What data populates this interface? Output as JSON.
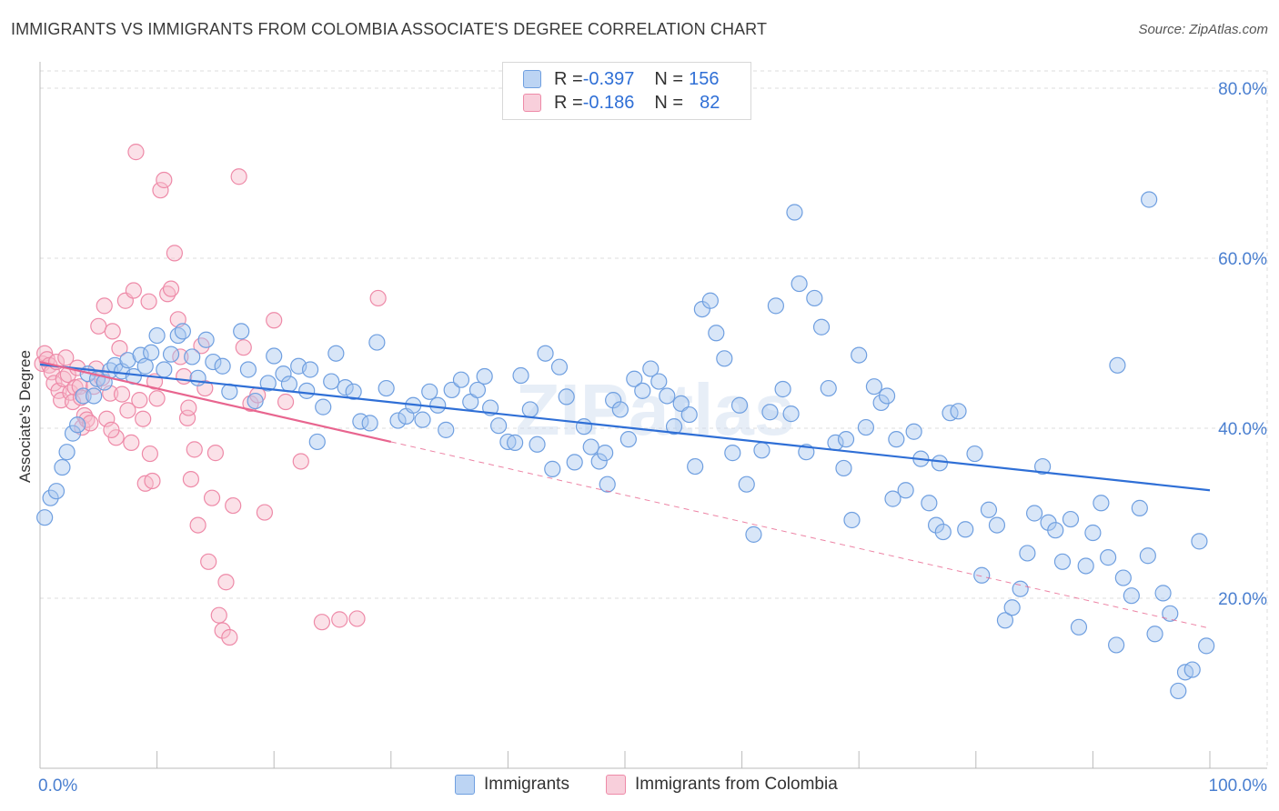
{
  "header": {
    "title": "IMMIGRANTS VS IMMIGRANTS FROM COLOMBIA ASSOCIATE'S DEGREE CORRELATION CHART",
    "source": "Source: ZipAtlas.com"
  },
  "watermark": "ZIPatlas",
  "legend_top": [
    {
      "r_label": "R = ",
      "r_value": "-0.397",
      "n_label": "N = ",
      "n_value": "156"
    },
    {
      "r_label": "R = ",
      "r_value": "-0.186",
      "n_label": "N = ",
      "n_value": "82"
    }
  ],
  "colors": {
    "blue_fill": "#a9c8f0",
    "blue_stroke": "#6f9fe0",
    "blue_line": "#2f6fd6",
    "pink_fill": "#f6bccd",
    "pink_stroke": "#ee8aa8",
    "pink_line": "#e8658f",
    "grid": "#dddddd",
    "tick_text": "#4a7fd0"
  },
  "chart_data": {
    "type": "scatter",
    "xlabel": "",
    "ylabel": "Associate's Degree",
    "xlim": [
      0,
      100
    ],
    "ylim": [
      0,
      85
    ],
    "x_tick_labels": [
      "0.0%",
      "100.0%"
    ],
    "y_ticks": [
      20,
      40,
      60,
      80
    ],
    "y_tick_labels": [
      "20.0%",
      "40.0%",
      "60.0%",
      "80.0%"
    ],
    "grid": true,
    "legend": "bottom-center",
    "series": [
      {
        "name": "Immigrants",
        "color": "#6f9fe0",
        "trend": {
          "x0": 0,
          "y0": 47.5,
          "x1": 100,
          "y1": 32.7
        },
        "points": [
          [
            0.4,
            29.5
          ],
          [
            0.9,
            31.8
          ],
          [
            1.4,
            32.6
          ],
          [
            1.9,
            35.4
          ],
          [
            2.3,
            37.2
          ],
          [
            2.8,
            39.4
          ],
          [
            3.2,
            40.4
          ],
          [
            3.7,
            43.8
          ],
          [
            4.1,
            46.4
          ],
          [
            4.6,
            43.8
          ],
          [
            4.9,
            45.8
          ],
          [
            5.5,
            45.4
          ],
          [
            6.0,
            46.8
          ],
          [
            6.4,
            47.4
          ],
          [
            7.0,
            46.7
          ],
          [
            7.5,
            48.0
          ],
          [
            8.0,
            46.1
          ],
          [
            8.6,
            48.6
          ],
          [
            9.0,
            47.3
          ],
          [
            9.5,
            48.9
          ],
          [
            10.0,
            50.9
          ],
          [
            10.6,
            46.9
          ],
          [
            11.2,
            48.7
          ],
          [
            11.8,
            50.9
          ],
          [
            12.2,
            51.4
          ],
          [
            13.0,
            48.4
          ],
          [
            13.5,
            45.9
          ],
          [
            14.2,
            50.4
          ],
          [
            14.8,
            47.8
          ],
          [
            15.6,
            47.3
          ],
          [
            16.2,
            44.3
          ],
          [
            17.2,
            51.4
          ],
          [
            17.8,
            46.9
          ],
          [
            18.4,
            43.2
          ],
          [
            19.5,
            45.3
          ],
          [
            20.0,
            48.5
          ],
          [
            20.8,
            46.4
          ],
          [
            21.3,
            45.2
          ],
          [
            22.1,
            47.3
          ],
          [
            22.8,
            44.4
          ],
          [
            23.1,
            46.9
          ],
          [
            24.2,
            42.5
          ],
          [
            24.9,
            45.5
          ],
          [
            25.3,
            48.8
          ],
          [
            26.1,
            44.8
          ],
          [
            26.8,
            44.3
          ],
          [
            27.4,
            40.8
          ],
          [
            28.2,
            40.6
          ],
          [
            28.8,
            50.1
          ],
          [
            29.6,
            44.7
          ],
          [
            30.6,
            40.9
          ],
          [
            31.3,
            41.4
          ],
          [
            31.9,
            42.7
          ],
          [
            32.7,
            41.0
          ],
          [
            33.3,
            44.3
          ],
          [
            34.0,
            42.7
          ],
          [
            34.7,
            39.8
          ],
          [
            35.2,
            44.5
          ],
          [
            36.0,
            45.7
          ],
          [
            36.8,
            43.1
          ],
          [
            37.4,
            44.5
          ],
          [
            38.0,
            46.1
          ],
          [
            38.5,
            42.4
          ],
          [
            39.2,
            40.3
          ],
          [
            40.0,
            38.4
          ],
          [
            40.6,
            38.3
          ],
          [
            41.1,
            46.2
          ],
          [
            41.9,
            42.2
          ],
          [
            42.5,
            38.1
          ],
          [
            43.2,
            48.8
          ],
          [
            43.8,
            35.2
          ],
          [
            44.4,
            47.2
          ],
          [
            45.0,
            43.7
          ],
          [
            45.7,
            36.0
          ],
          [
            46.5,
            40.2
          ],
          [
            47.1,
            37.8
          ],
          [
            47.8,
            36.1
          ],
          [
            48.5,
            33.4
          ],
          [
            49.0,
            43.3
          ],
          [
            49.6,
            42.2
          ],
          [
            50.3,
            38.7
          ],
          [
            50.8,
            45.8
          ],
          [
            51.5,
            44.4
          ],
          [
            52.2,
            47.0
          ],
          [
            52.9,
            45.5
          ],
          [
            53.6,
            43.8
          ],
          [
            54.2,
            40.2
          ],
          [
            54.8,
            42.9
          ],
          [
            55.5,
            41.6
          ],
          [
            56.0,
            35.5
          ],
          [
            56.6,
            54.0
          ],
          [
            57.3,
            55.0
          ],
          [
            57.8,
            51.2
          ],
          [
            58.5,
            48.2
          ],
          [
            59.2,
            37.1
          ],
          [
            59.8,
            42.7
          ],
          [
            60.4,
            33.4
          ],
          [
            61.0,
            27.5
          ],
          [
            61.7,
            37.4
          ],
          [
            62.4,
            41.9
          ],
          [
            62.9,
            54.4
          ],
          [
            63.5,
            44.6
          ],
          [
            64.2,
            41.7
          ],
          [
            64.9,
            57.0
          ],
          [
            65.5,
            37.2
          ],
          [
            66.2,
            55.3
          ],
          [
            66.8,
            51.9
          ],
          [
            67.4,
            44.7
          ],
          [
            68.0,
            38.3
          ],
          [
            68.7,
            35.3
          ],
          [
            69.4,
            29.2
          ],
          [
            70.0,
            48.6
          ],
          [
            70.6,
            40.1
          ],
          [
            71.3,
            44.9
          ],
          [
            71.9,
            43.0
          ],
          [
            72.4,
            43.8
          ],
          [
            73.2,
            38.7
          ],
          [
            74.0,
            32.7
          ],
          [
            74.7,
            39.6
          ],
          [
            75.3,
            36.4
          ],
          [
            76.0,
            31.2
          ],
          [
            76.6,
            28.6
          ],
          [
            77.2,
            27.8
          ],
          [
            77.8,
            41.8
          ],
          [
            78.5,
            42.0
          ],
          [
            79.1,
            28.1
          ],
          [
            79.9,
            37.0
          ],
          [
            80.5,
            22.7
          ],
          [
            81.1,
            30.4
          ],
          [
            81.8,
            28.6
          ],
          [
            82.5,
            17.4
          ],
          [
            83.1,
            18.9
          ],
          [
            83.8,
            21.1
          ],
          [
            84.4,
            25.3
          ],
          [
            85.0,
            30.0
          ],
          [
            85.7,
            35.5
          ],
          [
            86.2,
            28.9
          ],
          [
            86.8,
            28.0
          ],
          [
            87.4,
            24.3
          ],
          [
            88.1,
            29.3
          ],
          [
            88.8,
            16.6
          ],
          [
            89.4,
            23.8
          ],
          [
            90.0,
            27.7
          ],
          [
            90.7,
            31.2
          ],
          [
            91.3,
            24.8
          ],
          [
            92.0,
            14.5
          ],
          [
            92.6,
            22.4
          ],
          [
            93.3,
            20.3
          ],
          [
            94.0,
            30.6
          ],
          [
            94.7,
            25.0
          ],
          [
            95.3,
            15.8
          ],
          [
            96.0,
            20.6
          ],
          [
            96.6,
            18.2
          ],
          [
            97.3,
            9.1
          ],
          [
            97.9,
            11.3
          ],
          [
            98.5,
            11.6
          ],
          [
            99.1,
            26.7
          ],
          [
            99.7,
            14.4
          ],
          [
            64.5,
            65.4
          ],
          [
            94.8,
            66.9
          ],
          [
            92.1,
            47.4
          ],
          [
            76.9,
            35.9
          ],
          [
            72.9,
            31.7
          ],
          [
            68.9,
            38.7
          ],
          [
            48.3,
            37.1
          ],
          [
            23.7,
            38.4
          ]
        ]
      },
      {
        "name": "Immigrants from Colombia",
        "color": "#ee8aa8",
        "trend": {
          "x0": 0,
          "y0": 47.8,
          "x1": 30,
          "y1": 38.4
        },
        "points": [
          [
            0.2,
            47.6
          ],
          [
            0.4,
            48.8
          ],
          [
            0.6,
            48.1
          ],
          [
            0.8,
            47.4
          ],
          [
            1.0,
            46.6
          ],
          [
            1.2,
            45.3
          ],
          [
            1.4,
            47.8
          ],
          [
            1.6,
            44.4
          ],
          [
            1.8,
            43.3
          ],
          [
            2.0,
            45.8
          ],
          [
            2.2,
            48.3
          ],
          [
            2.4,
            46.3
          ],
          [
            2.6,
            44.2
          ],
          [
            2.8,
            43.1
          ],
          [
            3.0,
            44.8
          ],
          [
            3.2,
            47.1
          ],
          [
            3.4,
            44.9
          ],
          [
            3.6,
            40.1
          ],
          [
            3.8,
            41.5
          ],
          [
            4.0,
            41.0
          ],
          [
            4.3,
            40.6
          ],
          [
            4.6,
            44.9
          ],
          [
            4.8,
            47.0
          ],
          [
            5.0,
            52.0
          ],
          [
            5.3,
            45.9
          ],
          [
            5.5,
            54.4
          ],
          [
            5.7,
            41.1
          ],
          [
            6.0,
            44.1
          ],
          [
            6.2,
            51.4
          ],
          [
            6.5,
            38.9
          ],
          [
            6.8,
            49.4
          ],
          [
            7.0,
            44.0
          ],
          [
            7.3,
            55.0
          ],
          [
            7.5,
            42.1
          ],
          [
            7.8,
            38.3
          ],
          [
            8.0,
            56.2
          ],
          [
            8.2,
            72.5
          ],
          [
            8.5,
            43.3
          ],
          [
            8.8,
            41.1
          ],
          [
            9.0,
            33.5
          ],
          [
            9.3,
            54.9
          ],
          [
            9.6,
            33.8
          ],
          [
            9.8,
            45.5
          ],
          [
            10.0,
            43.5
          ],
          [
            10.3,
            68.0
          ],
          [
            10.6,
            69.2
          ],
          [
            10.9,
            55.8
          ],
          [
            11.2,
            56.4
          ],
          [
            11.5,
            60.6
          ],
          [
            11.8,
            52.8
          ],
          [
            12.0,
            48.4
          ],
          [
            12.3,
            46.1
          ],
          [
            12.6,
            41.2
          ],
          [
            12.9,
            34.0
          ],
          [
            13.2,
            37.5
          ],
          [
            13.5,
            28.6
          ],
          [
            13.8,
            49.7
          ],
          [
            14.1,
            44.7
          ],
          [
            14.4,
            24.3
          ],
          [
            14.7,
            31.8
          ],
          [
            15.0,
            37.1
          ],
          [
            15.3,
            18.0
          ],
          [
            15.6,
            16.2
          ],
          [
            15.9,
            21.9
          ],
          [
            16.2,
            15.4
          ],
          [
            16.5,
            30.9
          ],
          [
            17.0,
            69.6
          ],
          [
            17.4,
            49.5
          ],
          [
            18.0,
            42.9
          ],
          [
            18.6,
            43.9
          ],
          [
            19.2,
            30.1
          ],
          [
            20.0,
            52.7
          ],
          [
            21.0,
            43.1
          ],
          [
            22.3,
            36.1
          ],
          [
            24.1,
            17.2
          ],
          [
            25.6,
            17.5
          ],
          [
            27.1,
            17.6
          ],
          [
            28.9,
            55.3
          ],
          [
            12.7,
            42.4
          ],
          [
            9.4,
            37.0
          ],
          [
            6.1,
            39.8
          ],
          [
            3.5,
            43.6
          ]
        ]
      }
    ]
  },
  "legend_bottom": [
    "Immigrants",
    "Immigrants from Colombia"
  ]
}
